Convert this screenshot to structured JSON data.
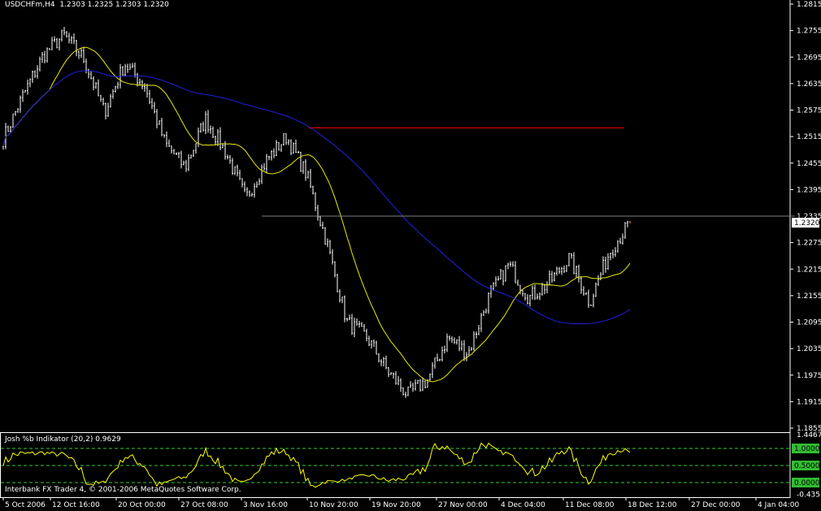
{
  "window": {
    "symbol_title": "USDCHFm,H4",
    "ohlc_readout": "1.2303 1.2325 1.2303 1.2320",
    "copyright": "Interbank FX Trader 4, © 2001-2006 MetaQuotes Software Corp."
  },
  "colors": {
    "background": "#000000",
    "bars": "#ffffff",
    "ma_fast": "#e8e800",
    "ma_slow": "#2020e0",
    "resistance": "#ff0000",
    "level_line": "#808080",
    "indicator": "#ffff00",
    "indicator_levels": "#33cc33"
  },
  "chart_data": [
    {
      "type": "bar",
      "subtype": "ohlc",
      "symbol": "USDCHFm",
      "timeframe": "H4",
      "current_price": 1.232,
      "ylim": [
        1.1855,
        1.2815
      ],
      "yticks": [
        "1.2815",
        "1.2755",
        "1.2695",
        "1.2635",
        "1.2575",
        "1.2515",
        "1.2455",
        "1.2395",
        "1.2335",
        "1.2275",
        "1.2215",
        "1.2155",
        "1.2095",
        "1.2035",
        "1.1975",
        "1.1915",
        "1.1855"
      ],
      "xticks": [
        "5 Oct 2006",
        "12 Oct 16:00",
        "20 Oct 00:00",
        "27 Oct 08:00",
        "3 Nov 16:00",
        "10 Nov 20:00",
        "19 Nov 20:00",
        "27 Nov 00:00",
        "4 Dec 04:00",
        "11 Dec 08:00",
        "18 Dec 12:00",
        "27 Dec 00:00",
        "4 Jan 04:00"
      ],
      "price_path": [
        1.251,
        1.261,
        1.27,
        1.2745,
        1.269,
        1.257,
        1.268,
        1.263,
        1.25,
        1.2445,
        1.2555,
        1.248,
        1.2375,
        1.246,
        1.2515,
        1.243,
        1.2275,
        1.2095,
        1.206,
        1.1985,
        1.193,
        1.1965,
        1.206,
        1.2025,
        1.215,
        1.2225,
        1.215,
        1.2185,
        1.224,
        1.214,
        1.2255,
        1.232
      ],
      "moving_averages": [
        {
          "color": "yellow"
        },
        {
          "color": "blue"
        }
      ],
      "horizontal_lines": [
        {
          "price": 1.2535,
          "color": "red"
        },
        {
          "price": 1.2335,
          "color": "gray"
        }
      ]
    },
    {
      "type": "line",
      "title": "Josh %b Indikator (20,2) 0.9629",
      "ylim": [
        -0.435,
        1.4467
      ],
      "yticks": [
        "1.4467",
        "-0.435"
      ],
      "levels": [
        "1.0000",
        "0.5000",
        "0.0000"
      ]
    }
  ]
}
